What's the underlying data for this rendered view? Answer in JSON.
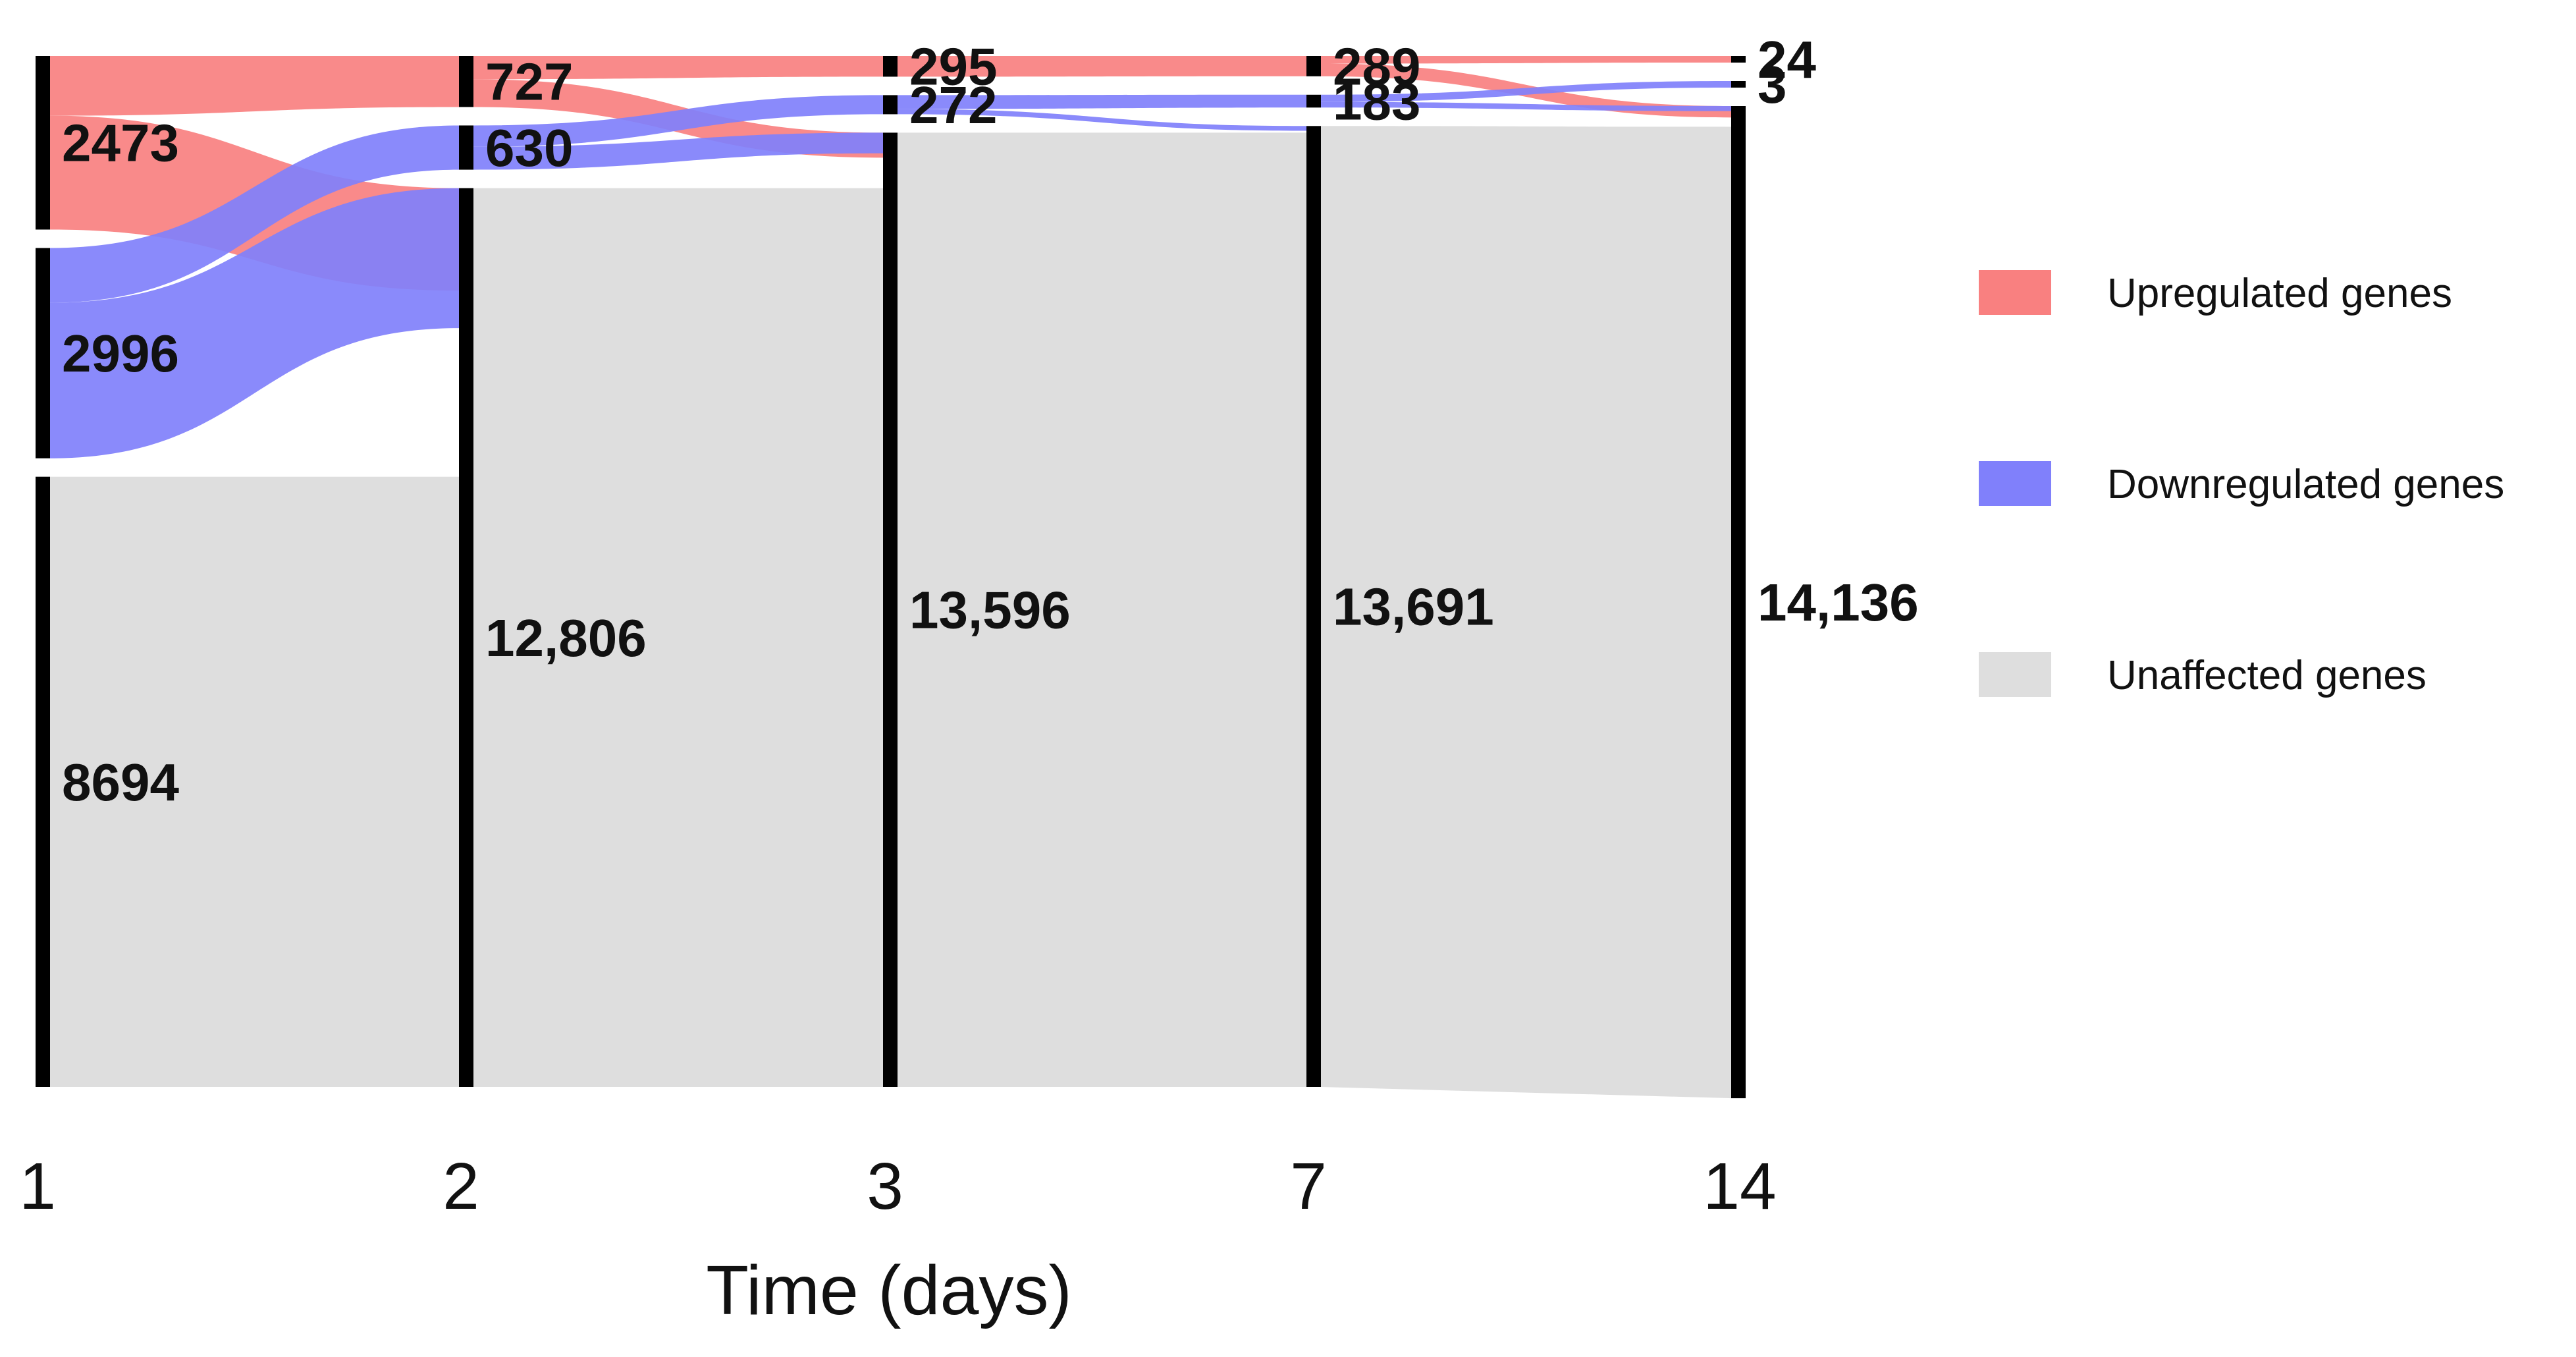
{
  "chart_data": {
    "type": "sankey",
    "xlabel": "Time (days)",
    "time_points": [
      "1",
      "2",
      "3",
      "7",
      "14"
    ],
    "categories": [
      "Upregulated genes",
      "Downregulated genes",
      "Unaffected genes"
    ],
    "colors": {
      "Upregulated genes": "#f98080",
      "Downregulated genes": "#8080fb",
      "Unaffected genes": "#dedede",
      "bar": "#000000"
    },
    "nodes": [
      {
        "time": "1",
        "category": "Upregulated genes",
        "value": 2473,
        "label": "2473"
      },
      {
        "time": "1",
        "category": "Downregulated genes",
        "value": 2996,
        "label": "2996"
      },
      {
        "time": "1",
        "category": "Unaffected genes",
        "value": 8694,
        "label": "8694"
      },
      {
        "time": "2",
        "category": "Upregulated genes",
        "value": 727,
        "label": "727"
      },
      {
        "time": "2",
        "category": "Downregulated genes",
        "value": 630,
        "label": "630"
      },
      {
        "time": "2",
        "category": "Unaffected genes",
        "value": 12806,
        "label": "12,806"
      },
      {
        "time": "3",
        "category": "Upregulated genes",
        "value": 295,
        "label": "295"
      },
      {
        "time": "3",
        "category": "Downregulated genes",
        "value": 272,
        "label": "272"
      },
      {
        "time": "3",
        "category": "Unaffected genes",
        "value": 13596,
        "label": "13,596"
      },
      {
        "time": "7",
        "category": "Upregulated genes",
        "value": 289,
        "label": "289"
      },
      {
        "time": "7",
        "category": "Downregulated genes",
        "value": 183,
        "label": "183"
      },
      {
        "time": "7",
        "category": "Unaffected genes",
        "value": 13691,
        "label": "13,691"
      },
      {
        "time": "14",
        "category": "Upregulated genes",
        "value": 24,
        "label": "24"
      },
      {
        "time": "14",
        "category": "Downregulated genes",
        "value": 3,
        "label": "3"
      },
      {
        "time": "14",
        "category": "Unaffected genes",
        "value": 14136,
        "label": "14,136"
      }
    ],
    "legend": {
      "position": "right",
      "entries": [
        "Upregulated genes",
        "Downregulated genes",
        "Unaffected genes"
      ]
    }
  }
}
